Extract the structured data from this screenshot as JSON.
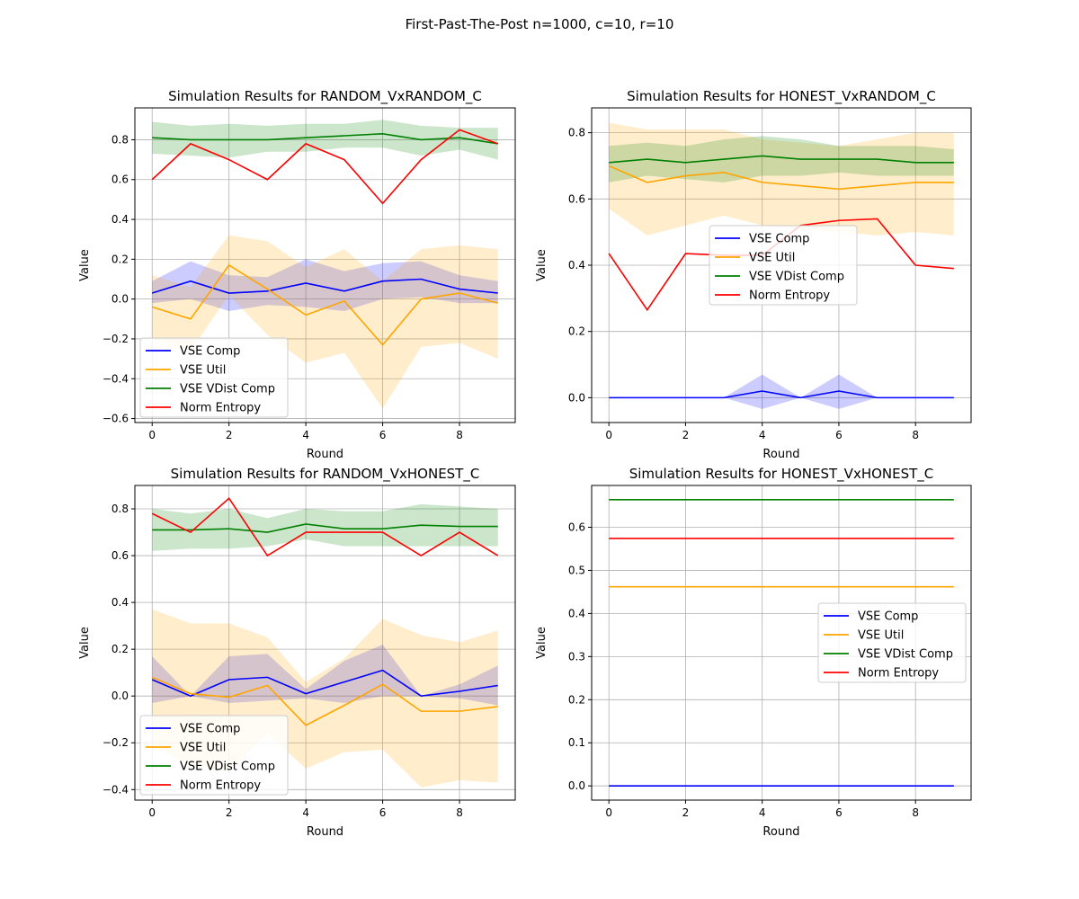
{
  "figure": {
    "title": "First-Past-The-Post n=1000, c=10, r=10"
  },
  "colors": {
    "VSE Comp": "#0000ff",
    "VSE Util": "#ffa500",
    "VSE VDist Comp": "#008000",
    "Norm Entropy": "#ff0000"
  },
  "chart_data": [
    {
      "type": "line",
      "title": "Simulation Results for RANDOM_VxRANDOM_C",
      "xlabel": "Round",
      "ylabel": "Value",
      "x": [
        0,
        1,
        2,
        3,
        4,
        5,
        6,
        7,
        8,
        9
      ],
      "xticks": [
        0,
        2,
        4,
        6,
        8
      ],
      "xlim": [
        -0.45,
        9.45
      ],
      "ylim": [
        -0.62,
        0.96
      ],
      "yticks": [
        -0.6,
        -0.4,
        -0.2,
        0.0,
        0.2,
        0.4,
        0.6,
        0.8
      ],
      "yticklabels": [
        "−0.6",
        "−0.4",
        "−0.2",
        "0.0",
        "0.2",
        "0.4",
        "0.6",
        "0.8"
      ],
      "legend_position": "lower-left",
      "grid": true,
      "series": [
        {
          "name": "VSE Comp",
          "values": [
            0.03,
            0.09,
            0.03,
            0.04,
            0.08,
            0.04,
            0.09,
            0.1,
            0.05,
            0.03
          ],
          "band_lower": [
            -0.02,
            0.0,
            -0.06,
            -0.03,
            -0.04,
            -0.06,
            0.0,
            0.01,
            -0.02,
            -0.02
          ],
          "band_upper": [
            0.09,
            0.19,
            0.12,
            0.11,
            0.2,
            0.14,
            0.18,
            0.19,
            0.12,
            0.09
          ]
        },
        {
          "name": "VSE Util",
          "values": [
            -0.04,
            -0.1,
            0.17,
            0.05,
            -0.08,
            -0.01,
            -0.23,
            0.0,
            0.03,
            -0.02
          ],
          "band_lower": [
            -0.2,
            -0.26,
            0.02,
            -0.18,
            -0.32,
            -0.27,
            -0.55,
            -0.24,
            -0.22,
            -0.3
          ],
          "band_upper": [
            0.12,
            0.06,
            0.32,
            0.29,
            0.16,
            0.25,
            0.09,
            0.25,
            0.27,
            0.25
          ]
        },
        {
          "name": "VSE VDist Comp",
          "values": [
            0.81,
            0.8,
            0.8,
            0.8,
            0.81,
            0.82,
            0.83,
            0.8,
            0.81,
            0.78
          ],
          "band_lower": [
            0.73,
            0.72,
            0.71,
            0.74,
            0.74,
            0.76,
            0.76,
            0.72,
            0.75,
            0.7
          ],
          "band_upper": [
            0.89,
            0.87,
            0.88,
            0.87,
            0.88,
            0.88,
            0.9,
            0.87,
            0.86,
            0.86
          ]
        },
        {
          "name": "Norm Entropy",
          "values": [
            0.6,
            0.78,
            0.7,
            0.6,
            0.78,
            0.7,
            0.48,
            0.7,
            0.85,
            0.78
          ]
        }
      ]
    },
    {
      "type": "line",
      "title": "Simulation Results for HONEST_VxRANDOM_C",
      "xlabel": "Round",
      "ylabel": "Value",
      "x": [
        0,
        1,
        2,
        3,
        4,
        5,
        6,
        7,
        8,
        9
      ],
      "xticks": [
        0,
        2,
        4,
        6,
        8
      ],
      "xlim": [
        -0.45,
        9.45
      ],
      "ylim": [
        -0.075,
        0.875
      ],
      "yticks": [
        0.0,
        0.2,
        0.4,
        0.6,
        0.8
      ],
      "yticklabels": [
        "0.0",
        "0.2",
        "0.4",
        "0.6",
        "0.8"
      ],
      "legend_position": "center",
      "grid": true,
      "series": [
        {
          "name": "VSE Comp",
          "values": [
            0,
            0,
            0,
            0,
            0.02,
            0,
            0.02,
            0,
            0,
            0
          ],
          "band_lower": [
            0,
            0,
            0,
            0,
            -0.034,
            0,
            -0.034,
            0,
            0,
            0
          ],
          "band_upper": [
            0,
            0,
            0,
            0,
            0.07,
            0,
            0.07,
            0,
            0,
            0
          ]
        },
        {
          "name": "VSE Util",
          "values": [
            0.7,
            0.65,
            0.67,
            0.68,
            0.65,
            0.64,
            0.63,
            0.64,
            0.65,
            0.65
          ],
          "band_lower": [
            0.57,
            0.49,
            0.52,
            0.55,
            0.52,
            0.51,
            0.5,
            0.49,
            0.5,
            0.49
          ],
          "band_upper": [
            0.83,
            0.81,
            0.81,
            0.81,
            0.78,
            0.77,
            0.76,
            0.78,
            0.8,
            0.8
          ]
        },
        {
          "name": "VSE VDist Comp",
          "values": [
            0.71,
            0.72,
            0.71,
            0.72,
            0.73,
            0.72,
            0.72,
            0.72,
            0.71,
            0.71
          ],
          "band_lower": [
            0.65,
            0.67,
            0.66,
            0.65,
            0.67,
            0.67,
            0.68,
            0.67,
            0.67,
            0.67
          ],
          "band_upper": [
            0.76,
            0.77,
            0.76,
            0.78,
            0.79,
            0.78,
            0.76,
            0.76,
            0.76,
            0.75
          ]
        },
        {
          "name": "Norm Entropy",
          "values": [
            0.435,
            0.265,
            0.435,
            0.43,
            0.43,
            0.52,
            0.535,
            0.54,
            0.4,
            0.39
          ]
        }
      ]
    },
    {
      "type": "line",
      "title": "Simulation Results for RANDOM_VxHONEST_C",
      "xlabel": "Round",
      "ylabel": "Value",
      "x": [
        0,
        1,
        2,
        3,
        4,
        5,
        6,
        7,
        8,
        9
      ],
      "xticks": [
        0,
        2,
        4,
        6,
        8
      ],
      "xlim": [
        -0.45,
        9.45
      ],
      "ylim": [
        -0.445,
        0.9
      ],
      "yticks": [
        -0.4,
        -0.2,
        0.0,
        0.2,
        0.4,
        0.6,
        0.8
      ],
      "yticklabels": [
        "−0.4",
        "−0.2",
        "0.0",
        "0.2",
        "0.4",
        "0.6",
        "0.8"
      ],
      "legend_position": "lower-left",
      "grid": true,
      "series": [
        {
          "name": "VSE Comp",
          "values": [
            0.07,
            0.0,
            0.07,
            0.08,
            0.01,
            0.06,
            0.11,
            0.0,
            0.02,
            0.045
          ],
          "band_lower": [
            -0.03,
            0.0,
            -0.03,
            -0.02,
            -0.01,
            -0.03,
            0.0,
            0.0,
            -0.01,
            -0.04
          ],
          "band_upper": [
            0.17,
            0.0,
            0.17,
            0.18,
            0.03,
            0.15,
            0.22,
            0.0,
            0.05,
            0.13
          ]
        },
        {
          "name": "VSE Util",
          "values": [
            0.08,
            0.01,
            -0.005,
            0.045,
            -0.125,
            -0.04,
            0.05,
            -0.065,
            -0.065,
            -0.045
          ],
          "band_lower": [
            -0.21,
            -0.3,
            -0.32,
            -0.16,
            -0.31,
            -0.24,
            -0.23,
            -0.39,
            -0.36,
            -0.37
          ],
          "band_upper": [
            0.37,
            0.31,
            0.31,
            0.25,
            0.06,
            0.16,
            0.33,
            0.26,
            0.23,
            0.28
          ]
        },
        {
          "name": "VSE VDist Comp",
          "values": [
            0.71,
            0.71,
            0.715,
            0.7,
            0.735,
            0.715,
            0.715,
            0.73,
            0.725,
            0.725
          ],
          "band_lower": [
            0.62,
            0.63,
            0.63,
            0.64,
            0.67,
            0.64,
            0.64,
            0.64,
            0.64,
            0.64
          ],
          "band_upper": [
            0.8,
            0.78,
            0.8,
            0.76,
            0.8,
            0.79,
            0.79,
            0.82,
            0.81,
            0.8
          ]
        },
        {
          "name": "Norm Entropy",
          "values": [
            0.78,
            0.7,
            0.845,
            0.6,
            0.7,
            0.7,
            0.7,
            0.6,
            0.7,
            0.6
          ]
        }
      ]
    },
    {
      "type": "line",
      "title": "Simulation Results for HONEST_VxHONEST_C",
      "xlabel": "Round",
      "ylabel": "Value",
      "x": [
        0,
        1,
        2,
        3,
        4,
        5,
        6,
        7,
        8,
        9
      ],
      "xticks": [
        0,
        2,
        4,
        6,
        8
      ],
      "xlim": [
        -0.45,
        9.45
      ],
      "ylim": [
        -0.033,
        0.697
      ],
      "yticks": [
        0.0,
        0.1,
        0.2,
        0.3,
        0.4,
        0.5,
        0.6
      ],
      "yticklabels": [
        "0.0",
        "0.1",
        "0.2",
        "0.3",
        "0.4",
        "0.5",
        "0.6"
      ],
      "legend_position": "center-right",
      "grid": true,
      "series": [
        {
          "name": "VSE Comp",
          "values": [
            0,
            0,
            0,
            0,
            0,
            0,
            0,
            0,
            0,
            0
          ]
        },
        {
          "name": "VSE Util",
          "values": [
            0.462,
            0.462,
            0.462,
            0.462,
            0.462,
            0.462,
            0.462,
            0.462,
            0.462,
            0.462
          ]
        },
        {
          "name": "VSE VDist Comp",
          "values": [
            0.664,
            0.664,
            0.664,
            0.664,
            0.664,
            0.664,
            0.664,
            0.664,
            0.664,
            0.664
          ]
        },
        {
          "name": "Norm Entropy",
          "values": [
            0.574,
            0.574,
            0.574,
            0.574,
            0.574,
            0.574,
            0.574,
            0.574,
            0.574,
            0.574
          ]
        }
      ]
    }
  ]
}
